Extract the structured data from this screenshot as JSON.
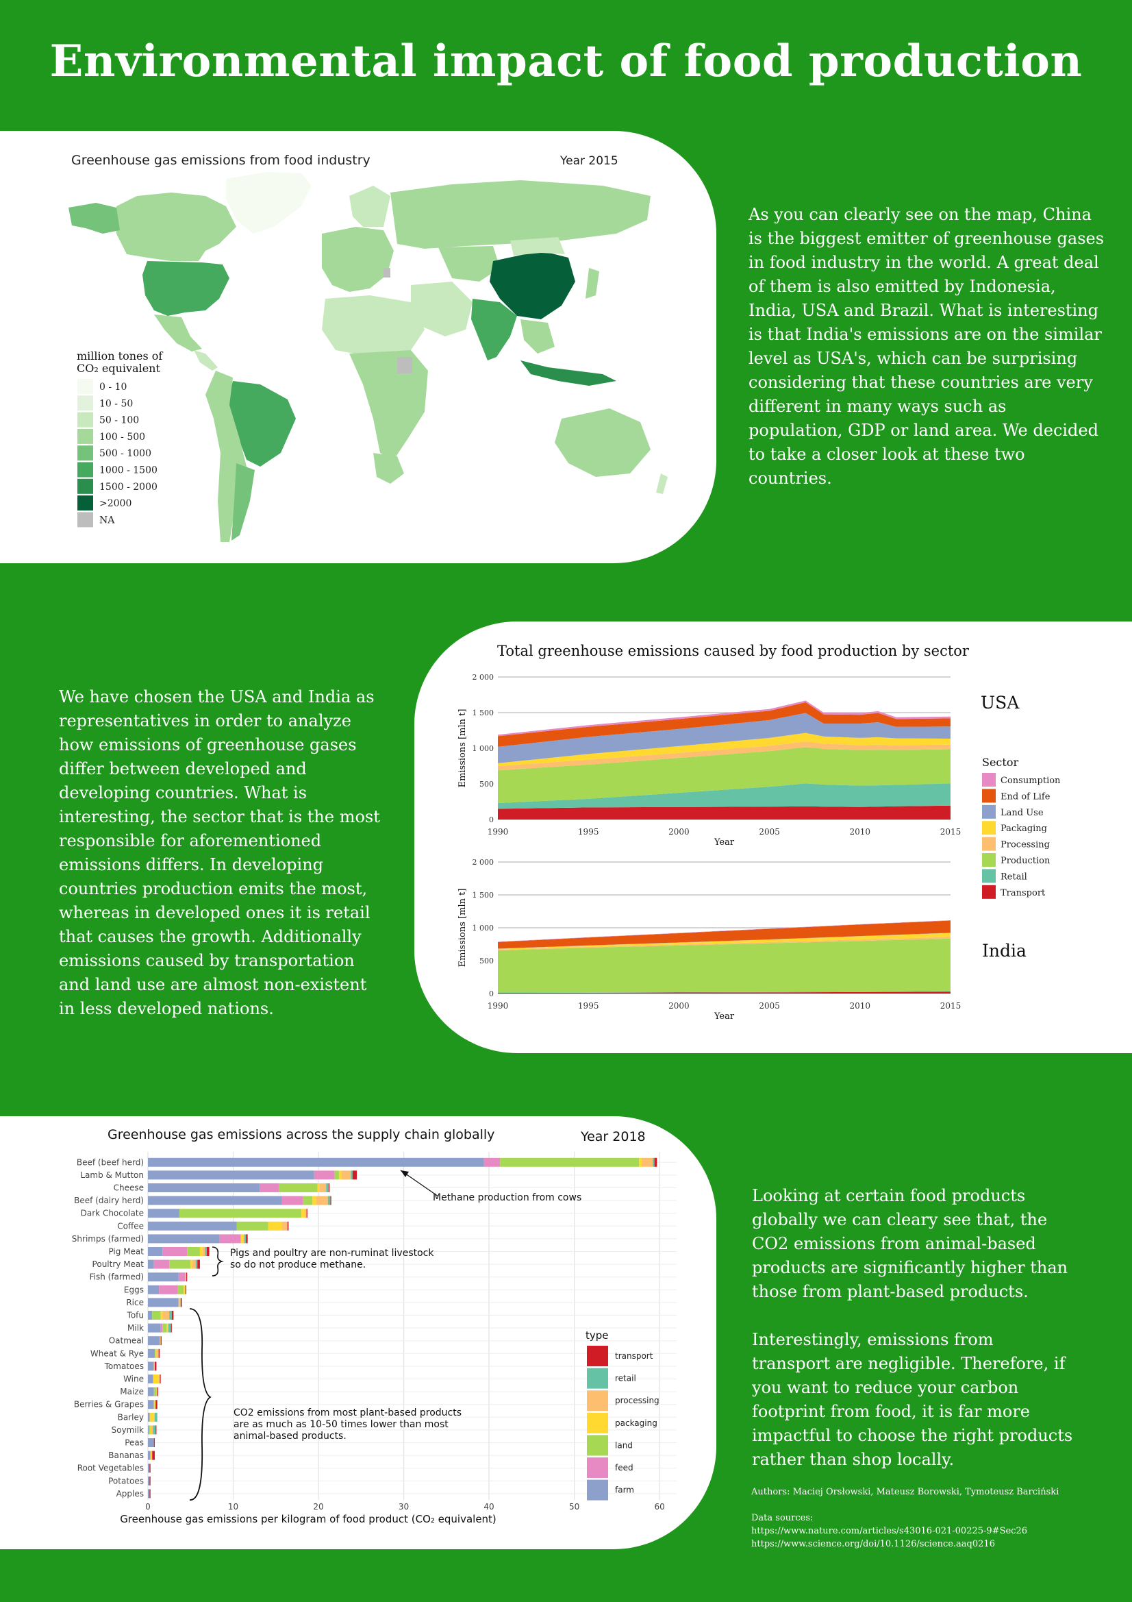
{
  "page": {
    "title": "Environmental impact of food production",
    "bg_color": "#1f961c"
  },
  "map": {
    "title": "Greenhouse gas emissions from food industry",
    "year_label": "Year 2015",
    "legend_title_line1": "million tones of",
    "legend_title_line2": "CO₂ equivalent",
    "legend": [
      {
        "label": "0 - 10",
        "color": "#f5fbf1"
      },
      {
        "label": "10 - 50",
        "color": "#e3f2dc"
      },
      {
        "label": "50 - 100",
        "color": "#c8e8bd"
      },
      {
        "label": "100 - 500",
        "color": "#a5d99a"
      },
      {
        "label": "500 - 1000",
        "color": "#75c27a"
      },
      {
        "label": "1000 - 1500",
        "color": "#45a95e"
      },
      {
        "label": "1500 - 2000",
        "color": "#2a8f4c"
      },
      {
        "label": ">2000",
        "color": "#05603a"
      },
      {
        "label": "NA",
        "color": "#bdbdbd"
      }
    ],
    "description": "As you can clearly see on the map, China is the biggest emitter of greenhouse gases in food industry in the world. A great deal of them is also emitted by Indonesia, India, USA and Brazil. What is interesting is that India's emissions are on the similar level as USA's, which can be surprising considering that these countries are very different in many ways such as population, GDP or land area. We decided to take a closer look at these two countries."
  },
  "area": {
    "title": "Total greenhouse emissions caused by food production by sector",
    "ylabel": "Emissions [mln t]",
    "xlabel": "Year",
    "legend_title": "Sector",
    "usa_label": "USA",
    "india_label": "India",
    "description": "We have chosen the USA and India as representatives in order to analyze how emissions of greenhouse gases differ between developed and developing countries. What is interesting, the sector that is the most responsible for aforementioned emissions differs. In developing countries production emits the most, whereas in developed ones it is retail that causes the growth. Additionally emissions caused by transportation and land use are almost non-existent in less developed nations."
  },
  "bar": {
    "title": "Greenhouse gas emissions across the supply chain globally",
    "year_label": "Year 2018",
    "xlabel": "Greenhouse gas emissions per kilogram of food product (CO₂ equivalent)",
    "legend_title": "type",
    "annotation_methane": "Methane production from cows",
    "annotation_pigs_1": "Pigs and poultry are non-ruminat livestock",
    "annotation_pigs_2": "so do not produce methane.",
    "annotation_plant_1": "CO2 emissions from most plant-based products",
    "annotation_plant_2": "are as much as 10-50 times lower than most",
    "annotation_plant_3": "animal-based products.",
    "description_p1": "Looking at certain food products globally we can cleary see that, the CO2 emissions from animal-based products are significantly higher than those from plant-based products.",
    "description_p2": "Interestingly, emissions from transport are negligible. Therefore, if you want to reduce your carbon footprint from food, it is far more impactful to choose the right products rather than shop locally."
  },
  "footer": {
    "authors": "Authors: Maciej Orsłowski, Mateusz Borowski, Tymoteusz Barciński",
    "sources_label": "Data sources:",
    "source1": "https://www.nature.com/articles/s43016-021-00225-9#Sec26",
    "source2": "https://www.science.org/doi/10.1126/science.aaq0216"
  },
  "chart_data": [
    {
      "type": "area",
      "title": "Total greenhouse emissions caused by food production by sector",
      "panel": "USA",
      "xlabel": "Year",
      "ylabel": "Emissions [mln t]",
      "ylim": [
        0,
        2000
      ],
      "x_ticks": [
        1990,
        1995,
        2000,
        2005,
        2010,
        2015
      ],
      "y_ticks": [
        0,
        500,
        1000,
        1500,
        2000
      ],
      "y_tick_labels": [
        "0",
        "500",
        "1 000",
        "1 500",
        "2 000"
      ],
      "x": [
        1990,
        1995,
        2000,
        2005,
        2007,
        2008,
        2010,
        2011,
        2012,
        2015
      ],
      "series": [
        {
          "name": "Transport",
          "color": "#d01c25",
          "values": [
            150,
            170,
            175,
            180,
            185,
            180,
            175,
            180,
            185,
            195
          ]
        },
        {
          "name": "Retail",
          "color": "#66c2a5",
          "values": [
            80,
            120,
            200,
            280,
            320,
            310,
            300,
            300,
            300,
            310
          ]
        },
        {
          "name": "Production",
          "color": "#a6d854",
          "values": [
            460,
            480,
            490,
            500,
            510,
            500,
            500,
            500,
            490,
            480
          ]
        },
        {
          "name": "Processing",
          "color": "#fdbf6f",
          "values": [
            60,
            70,
            70,
            75,
            80,
            75,
            70,
            70,
            70,
            65
          ]
        },
        {
          "name": "Packaging",
          "color": "#ffd92f",
          "values": [
            40,
            80,
            95,
            110,
            120,
            100,
            100,
            105,
            95,
            85
          ]
        },
        {
          "name": "Land Use",
          "color": "#8da0cb",
          "values": [
            230,
            240,
            240,
            250,
            280,
            180,
            200,
            210,
            160,
            170
          ]
        },
        {
          "name": "End of Life",
          "color": "#e6550d",
          "values": [
            150,
            140,
            140,
            130,
            150,
            130,
            125,
            130,
            110,
            115
          ]
        },
        {
          "name": "Consumption",
          "color": "#e78ac3",
          "values": [
            20,
            25,
            25,
            25,
            25,
            25,
            25,
            25,
            25,
            25
          ]
        }
      ]
    },
    {
      "type": "area",
      "panel": "India",
      "xlabel": "Year",
      "ylabel": "Emissions [mln t]",
      "ylim": [
        0,
        2000
      ],
      "x_ticks": [
        1990,
        1995,
        2000,
        2005,
        2010,
        2015
      ],
      "y_ticks": [
        0,
        500,
        1000,
        1500,
        2000
      ],
      "y_tick_labels": [
        "0",
        "500",
        "1 000",
        "1 500",
        "2 000"
      ],
      "x": [
        1990,
        1995,
        2000,
        2005,
        2010,
        2015
      ],
      "series": [
        {
          "name": "Transport",
          "color": "#d01c25",
          "values": [
            10,
            12,
            15,
            18,
            22,
            28
          ]
        },
        {
          "name": "Retail",
          "color": "#66c2a5",
          "values": [
            5,
            5,
            6,
            6,
            7,
            8
          ]
        },
        {
          "name": "Production",
          "color": "#a6d854",
          "values": [
            640,
            680,
            710,
            740,
            770,
            800
          ]
        },
        {
          "name": "Processing",
          "color": "#fdbf6f",
          "values": [
            10,
            12,
            15,
            18,
            22,
            25
          ]
        },
        {
          "name": "Packaging",
          "color": "#ffd92f",
          "values": [
            15,
            20,
            28,
            38,
            50,
            60
          ]
        },
        {
          "name": "Land Use",
          "color": "#8da0cb",
          "values": [
            3,
            3,
            3,
            3,
            3,
            3
          ]
        },
        {
          "name": "End of Life",
          "color": "#e6550d",
          "values": [
            100,
            120,
            140,
            160,
            175,
            185
          ]
        },
        {
          "name": "Consumption",
          "color": "#e78ac3",
          "values": [
            5,
            5,
            5,
            5,
            5,
            5
          ]
        }
      ]
    },
    {
      "type": "bar",
      "orientation": "horizontal",
      "stacked": true,
      "title": "Greenhouse gas emissions across the supply chain globally",
      "xlabel": "Greenhouse gas emissions per kilogram of food product (CO₂ equivalent)",
      "xlim": [
        0,
        62
      ],
      "x_ticks": [
        0,
        10,
        20,
        30,
        40,
        50,
        60
      ],
      "legend_position": "bottom-right",
      "series_order": [
        "farm",
        "feed",
        "land",
        "packaging",
        "processing",
        "retail",
        "transport"
      ],
      "legend_order": [
        "transport",
        "retail",
        "processing",
        "packaging",
        "land",
        "feed",
        "farm"
      ],
      "colors": {
        "farm": "#8da0cb",
        "feed": "#e78ac3",
        "land": "#a6d854",
        "packaging": "#ffd92f",
        "processing": "#fdbf6f",
        "retail": "#66c2a5",
        "transport": "#d01c25"
      },
      "categories": [
        "Beef (beef herd)",
        "Lamb & Mutton",
        "Cheese",
        "Beef (dairy herd)",
        "Dark Chocolate",
        "Coffee",
        "Shrimps (farmed)",
        "Pig Meat",
        "Poultry Meat",
        "Fish (farmed)",
        "Eggs",
        "Rice",
        "Tofu",
        "Milk",
        "Oatmeal",
        "Wheat & Rye",
        "Tomatoes",
        "Wine",
        "Maize",
        "Berries & Grapes",
        "Barley",
        "Soymilk",
        "Peas",
        "Bananas",
        "Root Vegetables",
        "Potatoes",
        "Apples"
      ],
      "values": [
        [
          39.4,
          1.9,
          16.3,
          0.3,
          1.3,
          0.2,
          0.3
        ],
        [
          19.5,
          2.4,
          0.5,
          0.3,
          1.1,
          0.2,
          0.5
        ],
        [
          13.1,
          2.3,
          4.5,
          0.2,
          0.8,
          0.3,
          0.1
        ],
        [
          15.7,
          2.5,
          1.1,
          0.4,
          1.4,
          0.3,
          0.1
        ],
        [
          3.7,
          0.0,
          14.3,
          0.4,
          0.2,
          0.0,
          0.1
        ],
        [
          10.4,
          0.0,
          3.7,
          1.6,
          0.6,
          0.1,
          0.1
        ],
        [
          8.4,
          2.5,
          0.0,
          0.3,
          0.1,
          0.2,
          0.2
        ],
        [
          1.7,
          2.9,
          1.5,
          0.3,
          0.3,
          0.2,
          0.3
        ],
        [
          0.7,
          1.8,
          2.5,
          0.2,
          0.4,
          0.2,
          0.3
        ],
        [
          3.6,
          0.8,
          0.0,
          0.1,
          0.0,
          0.0,
          0.1
        ],
        [
          1.3,
          2.2,
          0.7,
          0.2,
          0.0,
          0.0,
          0.1
        ],
        [
          3.6,
          0.0,
          0.0,
          0.1,
          0.1,
          0.1,
          0.1
        ],
        [
          0.5,
          0.0,
          1.0,
          0.2,
          0.8,
          0.3,
          0.2
        ],
        [
          1.5,
          0.2,
          0.5,
          0.1,
          0.1,
          0.3,
          0.1
        ],
        [
          1.4,
          0.0,
          0.0,
          0.1,
          0.0,
          0.0,
          0.1
        ],
        [
          0.8,
          0.0,
          0.1,
          0.1,
          0.2,
          0.1,
          0.1
        ],
        [
          0.7,
          0.0,
          0.0,
          0.1,
          0.0,
          0.0,
          0.2
        ],
        [
          0.6,
          0.0,
          0.0,
          0.7,
          0.1,
          0.0,
          0.1
        ],
        [
          0.7,
          0.0,
          0.3,
          0.0,
          0.1,
          0.0,
          0.1
        ],
        [
          0.7,
          0.0,
          0.0,
          0.2,
          0.0,
          0.0,
          0.2
        ],
        [
          0.2,
          0.0,
          0.0,
          0.5,
          0.1,
          0.3,
          0.0
        ],
        [
          0.1,
          0.0,
          0.2,
          0.1,
          0.2,
          0.3,
          0.1
        ],
        [
          0.7,
          0.0,
          0.0,
          0.0,
          0.0,
          0.0,
          0.1
        ],
        [
          0.3,
          0.0,
          0.0,
          0.1,
          0.1,
          0.0,
          0.3
        ],
        [
          0.2,
          0.0,
          0.0,
          0.0,
          0.0,
          0.0,
          0.1
        ],
        [
          0.2,
          0.0,
          0.0,
          0.0,
          0.0,
          0.0,
          0.1
        ],
        [
          0.2,
          0.0,
          0.0,
          0.0,
          0.0,
          0.0,
          0.1
        ]
      ]
    }
  ]
}
